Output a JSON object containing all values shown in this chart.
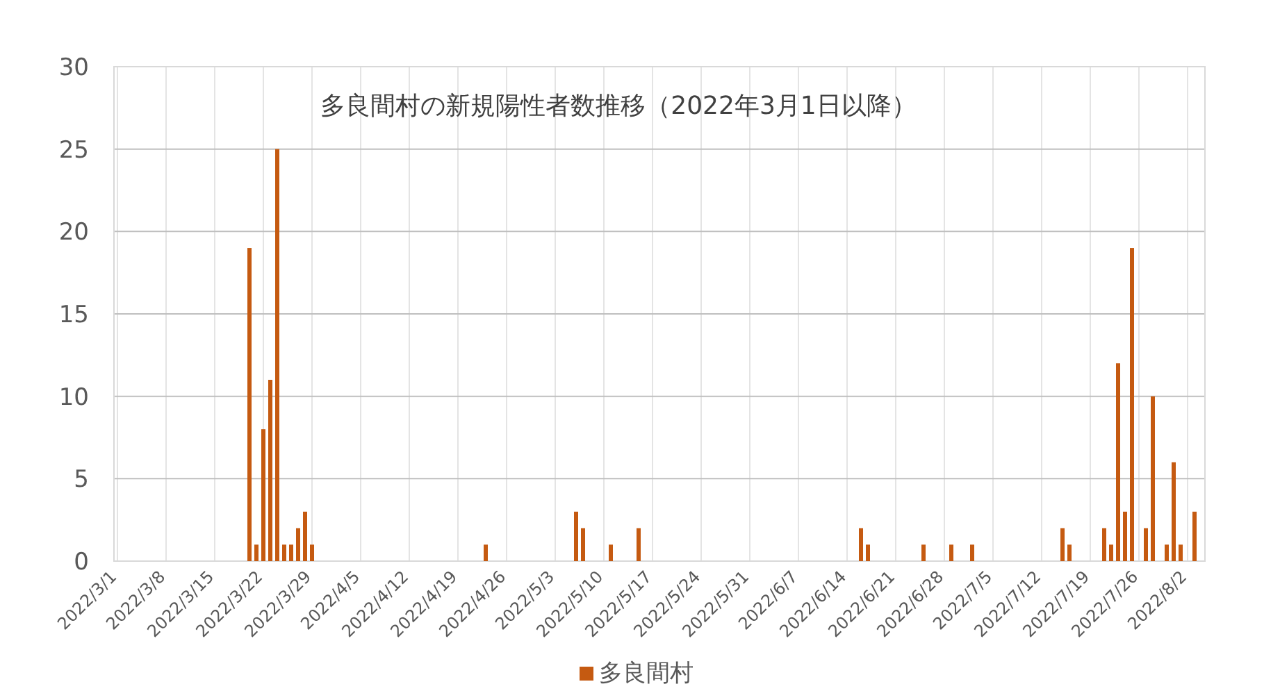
{
  "chart_data": {
    "type": "bar",
    "title": "多良間村の新規陽性者数推移（2022年3月1日以降）",
    "x": [
      "2022-03-20",
      "2022-03-21",
      "2022-03-22",
      "2022-03-23",
      "2022-03-24",
      "2022-03-25",
      "2022-03-26",
      "2022-03-27",
      "2022-03-28",
      "2022-03-29",
      "2022-04-23",
      "2022-05-06",
      "2022-05-07",
      "2022-05-11",
      "2022-05-15",
      "2022-06-16",
      "2022-06-17",
      "2022-06-25",
      "2022-06-29",
      "2022-07-02",
      "2022-07-15",
      "2022-07-16",
      "2022-07-21",
      "2022-07-22",
      "2022-07-23",
      "2022-07-24",
      "2022-07-25",
      "2022-07-27",
      "2022-07-28",
      "2022-07-30",
      "2022-07-31",
      "2022-08-01",
      "2022-08-03"
    ],
    "series": [
      {
        "name": "多良間村",
        "color": "#c55a11",
        "values": [
          19,
          1,
          8,
          11,
          25,
          1,
          1,
          2,
          3,
          1,
          1,
          3,
          2,
          1,
          2,
          2,
          1,
          1,
          1,
          1,
          2,
          1,
          2,
          1,
          12,
          3,
          19,
          2,
          10,
          1,
          6,
          1,
          3
        ]
      }
    ],
    "xlim": [
      "2022-02-28T12:00",
      "2022-08-04T12:00"
    ],
    "xticks": [
      {
        "value": "2022-03-01",
        "label": "2022/3/1"
      },
      {
        "value": "2022-03-08",
        "label": "2022/3/8"
      },
      {
        "value": "2022-03-15",
        "label": "2022/3/15"
      },
      {
        "value": "2022-03-22",
        "label": "2022/3/22"
      },
      {
        "value": "2022-03-29",
        "label": "2022/3/29"
      },
      {
        "value": "2022-04-05",
        "label": "2022/4/5"
      },
      {
        "value": "2022-04-12",
        "label": "2022/4/12"
      },
      {
        "value": "2022-04-19",
        "label": "2022/4/19"
      },
      {
        "value": "2022-04-26",
        "label": "2022/4/26"
      },
      {
        "value": "2022-05-03",
        "label": "2022/5/3"
      },
      {
        "value": "2022-05-10",
        "label": "2022/5/10"
      },
      {
        "value": "2022-05-17",
        "label": "2022/5/17"
      },
      {
        "value": "2022-05-24",
        "label": "2022/5/24"
      },
      {
        "value": "2022-05-31",
        "label": "2022/5/31"
      },
      {
        "value": "2022-06-07",
        "label": "2022/6/7"
      },
      {
        "value": "2022-06-14",
        "label": "2022/6/14"
      },
      {
        "value": "2022-06-21",
        "label": "2022/6/21"
      },
      {
        "value": "2022-06-28",
        "label": "2022/6/28"
      },
      {
        "value": "2022-07-05",
        "label": "2022/7/5"
      },
      {
        "value": "2022-07-12",
        "label": "2022/7/12"
      },
      {
        "value": "2022-07-19",
        "label": "2022/7/19"
      },
      {
        "value": "2022-07-26",
        "label": "2022/7/26"
      },
      {
        "value": "2022-08-02",
        "label": "2022/8/2"
      }
    ],
    "ylim": [
      0,
      30
    ],
    "yticks": [
      0,
      5,
      10,
      15,
      20,
      25,
      30
    ],
    "grid": true,
    "legend": "bottom"
  }
}
